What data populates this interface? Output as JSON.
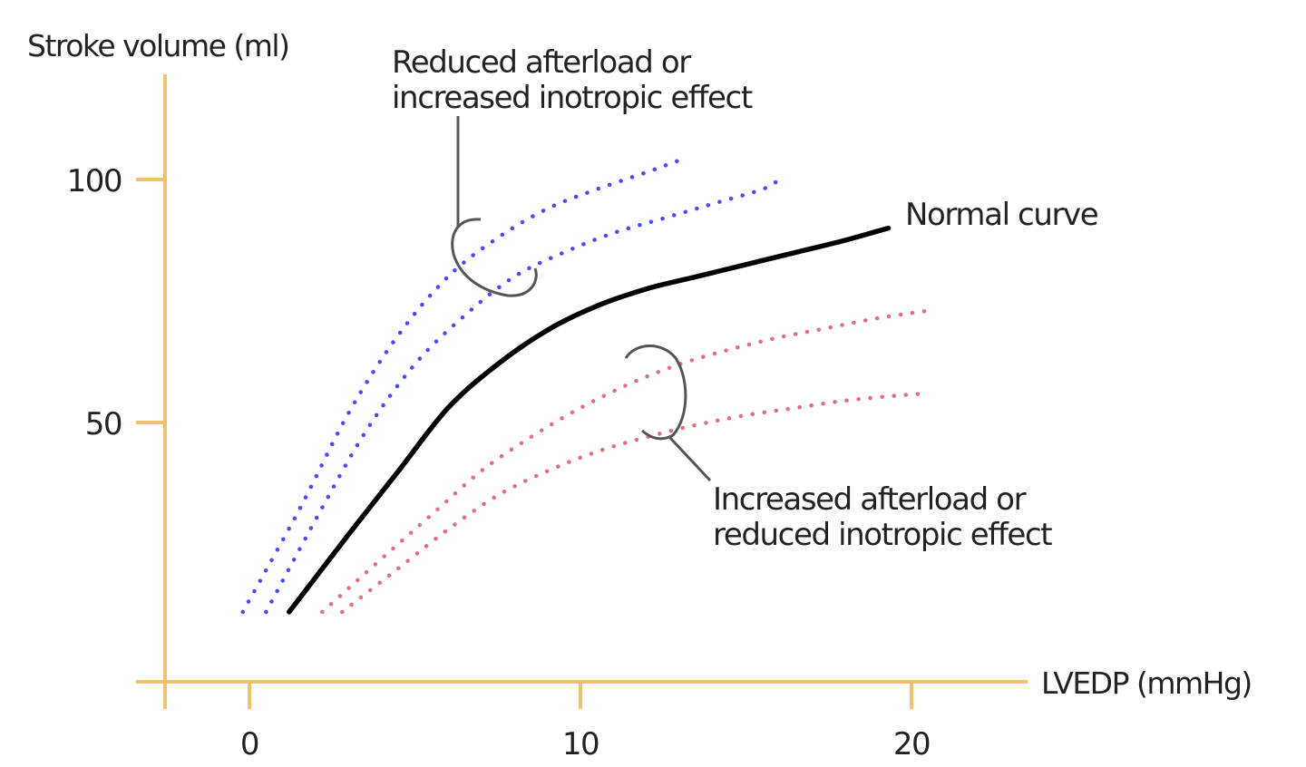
{
  "chart_data": {
    "type": "line",
    "title": "",
    "xlabel": "LVEDP (mmHg)",
    "ylabel": "Stroke volume (ml)",
    "xlim": [
      -2.7,
      23.5
    ],
    "ylim": [
      -3.4,
      122
    ],
    "x_ticks": [
      0,
      10,
      20
    ],
    "x_tick_labels": [
      "0",
      "10",
      "20"
    ],
    "y_ticks": [
      50,
      100
    ],
    "y_tick_labels": [
      "50",
      "100"
    ],
    "grid": false,
    "legend": "none",
    "axis_color": "#f0c270",
    "series": [
      {
        "name": "Reduced afterload or increased inotropic effect (upper)",
        "style": "dotted",
        "color": "#4a4af0",
        "x": [
          -0.2,
          1.5,
          3.0,
          4.5,
          6.0,
          7.5,
          9.0,
          10.5,
          12.0,
          13.0
        ],
        "y": [
          11,
          32,
          52,
          68,
          80,
          88,
          94,
          98,
          101.5,
          104
        ]
      },
      {
        "name": "Reduced afterload or increased inotropic effect (lower)",
        "style": "dotted",
        "color": "#4a4af0",
        "x": [
          0.5,
          2.0,
          3.5,
          5.0,
          6.5,
          8.0,
          9.5,
          11.0,
          12.5,
          14.0,
          15.5,
          16.0
        ],
        "y": [
          11,
          30,
          48,
          62,
          72,
          80,
          85,
          89,
          92,
          95,
          98,
          100
        ]
      },
      {
        "name": "Normal curve",
        "style": "solid",
        "color": "#000000",
        "x": [
          1.2,
          3.0,
          4.5,
          6.0,
          7.5,
          9.0,
          10.5,
          12.0,
          13.5,
          15.0,
          16.5,
          18.0,
          19.3
        ],
        "y": [
          11,
          27,
          40,
          53,
          62,
          69,
          74,
          77.5,
          80,
          82.5,
          85,
          87.5,
          90
        ]
      },
      {
        "name": "Increased afterload or reduced inotropic effect (upper)",
        "style": "dotted",
        "color": "#e0707e",
        "x": [
          2.2,
          4.0,
          5.5,
          7.0,
          8.5,
          10.0,
          11.5,
          13.0,
          14.5,
          16.0,
          17.5,
          19.0,
          20.5
        ],
        "y": [
          11,
          22,
          31,
          40,
          47,
          53,
          58,
          62,
          65,
          67.5,
          69.5,
          71.5,
          73
        ]
      },
      {
        "name": "Increased afterload or reduced inotropic effect (lower)",
        "style": "dotted",
        "color": "#e0707e",
        "x": [
          2.8,
          4.5,
          6.0,
          7.5,
          9.0,
          10.5,
          12.0,
          13.5,
          15.0,
          16.5,
          18.0,
          19.5,
          20.5
        ],
        "y": [
          11,
          20,
          28,
          35,
          40,
          44,
          47,
          49.5,
          51.5,
          53,
          54.5,
          55.5,
          56
        ]
      }
    ],
    "annotations": [
      {
        "id": "reduced-afterload",
        "lines": [
          "Reduced afterload or",
          "increased inotropic effect"
        ]
      },
      {
        "id": "normal",
        "lines": [
          "Normal curve"
        ]
      },
      {
        "id": "increased-afterload",
        "lines": [
          "Increased afterload or",
          "reduced inotropic effect"
        ]
      }
    ]
  }
}
